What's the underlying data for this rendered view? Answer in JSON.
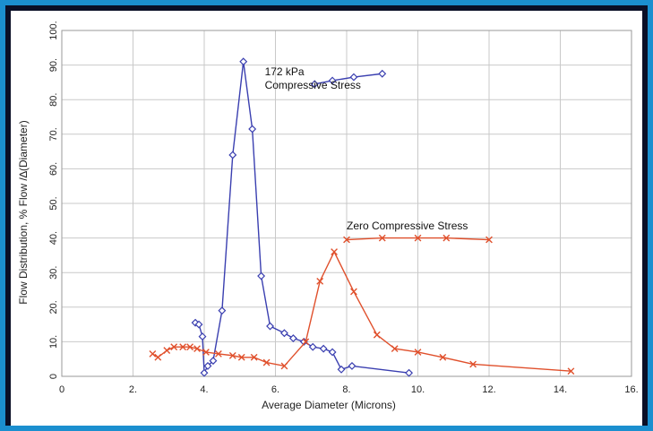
{
  "colors": {
    "frame_outer": "#1b8fcf",
    "frame_inner": "#0a0f26",
    "series_172kpa": "#3a3fb0",
    "series_zero": "#e0502c",
    "grid": "#c9c9c9"
  },
  "chart_data": {
    "type": "line",
    "xlabel": "Average Diameter (Microns)",
    "ylabel": "Flow Distribution, % Flow /∆(Diameter)",
    "xlim": [
      0,
      16
    ],
    "ylim": [
      0,
      100
    ],
    "x_ticks": [
      0,
      2,
      4,
      6,
      8,
      10,
      12,
      14,
      16
    ],
    "x_tick_labels": [
      "0",
      "2.",
      "4.",
      "6.",
      "8.",
      "10.",
      "12.",
      "14.",
      "16."
    ],
    "y_ticks": [
      0,
      10,
      20,
      30,
      40,
      50,
      60,
      70,
      80,
      90,
      100
    ],
    "y_tick_labels": [
      "0",
      "10.",
      "20.",
      "30.",
      "40.",
      "50.",
      "60.",
      "70.",
      "80.",
      "90.",
      "100."
    ],
    "grid": true,
    "legend": "none",
    "series": [
      {
        "marker": "diamond",
        "color": "#3a3fb0",
        "annotation_lines": [
          "172 kPa",
          "Compressive Stress"
        ],
        "points": [
          [
            3.75,
            15.5
          ],
          [
            3.85,
            15.0
          ],
          [
            3.95,
            11.5
          ],
          [
            4.0,
            1.0
          ],
          [
            4.1,
            3.0
          ],
          [
            4.25,
            4.5
          ],
          [
            4.5,
            19.0
          ],
          [
            4.8,
            64.0
          ],
          [
            5.1,
            91.0
          ],
          [
            5.35,
            71.5
          ],
          [
            5.6,
            29.0
          ],
          [
            5.85,
            14.5
          ],
          [
            6.25,
            12.5
          ],
          [
            6.5,
            11.0
          ],
          [
            6.8,
            10.0
          ],
          [
            7.05,
            8.5
          ],
          [
            7.35,
            8.0
          ],
          [
            7.6,
            7.0
          ],
          [
            7.85,
            2.0
          ],
          [
            8.15,
            3.0
          ],
          [
            9.75,
            1.0
          ]
        ],
        "label_points": [
          [
            7.1,
            84.5
          ],
          [
            7.6,
            85.5
          ],
          [
            8.2,
            86.5
          ],
          [
            9.0,
            87.5
          ]
        ]
      },
      {
        "marker": "x",
        "color": "#e0502c",
        "annotation_lines": [
          "Zero Compressive Stress"
        ],
        "points": [
          [
            2.55,
            6.5
          ],
          [
            2.7,
            5.5
          ],
          [
            2.95,
            7.5
          ],
          [
            3.15,
            8.5
          ],
          [
            3.4,
            8.5
          ],
          [
            3.6,
            8.5
          ],
          [
            3.8,
            8.0
          ],
          [
            4.05,
            7.0
          ],
          [
            4.4,
            6.5
          ],
          [
            4.8,
            6.0
          ],
          [
            5.05,
            5.5
          ],
          [
            5.4,
            5.5
          ],
          [
            5.75,
            4.0
          ],
          [
            6.25,
            3.0
          ],
          [
            6.85,
            10.0
          ],
          [
            7.25,
            27.5
          ],
          [
            7.65,
            36.0
          ],
          [
            8.2,
            24.5
          ],
          [
            8.85,
            12.0
          ],
          [
            9.35,
            8.0
          ],
          [
            10.0,
            7.0
          ],
          [
            10.7,
            5.5
          ],
          [
            11.55,
            3.5
          ],
          [
            14.3,
            1.5
          ]
        ],
        "label_points": [
          [
            8.0,
            39.5
          ],
          [
            9.0,
            40.0
          ],
          [
            10.0,
            40.0
          ],
          [
            10.8,
            40.0
          ],
          [
            12.0,
            39.5
          ]
        ]
      }
    ]
  }
}
